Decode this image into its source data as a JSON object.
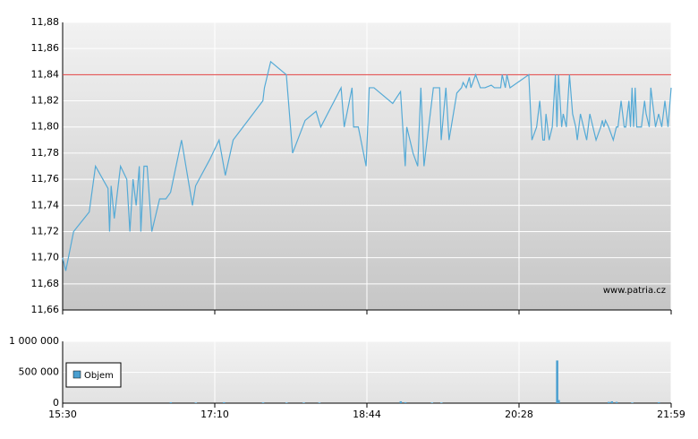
{
  "chart_data": [
    {
      "type": "line",
      "color": "#55aad6",
      "grid": true,
      "xlim": [
        0,
        389
      ],
      "ylim": [
        11.66,
        11.88
      ],
      "yticks": [
        {
          "value": 11.66,
          "label": "11,66"
        },
        {
          "value": 11.68,
          "label": "11,68"
        },
        {
          "value": 11.7,
          "label": "11,70"
        },
        {
          "value": 11.72,
          "label": "11,72"
        },
        {
          "value": 11.74,
          "label": "11,74"
        },
        {
          "value": 11.76,
          "label": "11,76"
        },
        {
          "value": 11.78,
          "label": "11,78"
        },
        {
          "value": 11.8,
          "label": "11,80"
        },
        {
          "value": 11.82,
          "label": "11,82"
        },
        {
          "value": 11.84,
          "label": "11,84"
        },
        {
          "value": 11.86,
          "label": "11,86"
        },
        {
          "value": 11.88,
          "label": "11,88"
        }
      ],
      "ref_line": {
        "value": 11.84,
        "color": "#e04040"
      },
      "annotation": "www.patria.cz",
      "x": [
        0,
        2,
        7,
        17,
        21,
        29,
        30,
        31,
        33,
        37,
        41,
        43,
        45,
        47,
        49,
        50,
        52,
        54,
        57,
        62,
        66,
        69,
        76,
        83,
        85,
        94,
        100,
        104,
        109,
        128,
        129,
        133,
        143,
        147,
        155,
        162,
        165,
        178,
        180,
        185,
        186,
        189,
        194,
        196,
        199,
        211,
        216,
        219,
        220,
        224,
        227,
        229,
        231,
        237,
        241,
        242,
        245,
        247,
        252,
        255,
        256,
        258,
        260,
        261,
        264,
        267,
        270,
        274,
        276,
        280,
        281,
        283,
        284,
        286,
        298,
        300,
        303,
        305,
        307,
        308,
        309,
        311,
        313,
        315,
        316,
        317,
        319,
        320,
        322,
        324,
        326,
        328,
        329,
        331,
        333,
        335,
        336,
        337,
        339,
        341,
        344,
        345,
        346,
        347,
        349,
        352,
        354,
        355,
        357,
        359,
        360,
        362,
        363,
        364,
        365,
        366,
        367,
        370,
        372,
        373,
        375,
        376,
        379,
        381,
        383,
        385,
        387,
        389
      ],
      "values": [
        11.7,
        11.69,
        11.72,
        11.735,
        11.77,
        11.753,
        11.72,
        11.755,
        11.73,
        11.77,
        11.76,
        11.72,
        11.76,
        11.74,
        11.77,
        11.72,
        11.77,
        11.77,
        11.72,
        11.745,
        11.745,
        11.75,
        11.79,
        11.74,
        11.755,
        11.775,
        11.79,
        11.763,
        11.79,
        11.82,
        11.83,
        11.85,
        11.84,
        11.78,
        11.805,
        11.812,
        11.8,
        11.83,
        11.8,
        11.83,
        11.8,
        11.8,
        11.77,
        11.83,
        11.83,
        11.818,
        11.827,
        11.77,
        11.8,
        11.78,
        11.77,
        11.83,
        11.77,
        11.83,
        11.83,
        11.79,
        11.83,
        11.79,
        11.826,
        11.83,
        11.834,
        11.83,
        11.838,
        11.83,
        11.84,
        11.83,
        11.83,
        11.832,
        11.83,
        11.83,
        11.84,
        11.83,
        11.84,
        11.83,
        11.84,
        11.79,
        11.8,
        11.82,
        11.79,
        11.79,
        11.81,
        11.79,
        11.8,
        11.84,
        11.8,
        11.84,
        11.8,
        11.81,
        11.8,
        11.84,
        11.81,
        11.8,
        11.79,
        11.81,
        11.8,
        11.79,
        11.8,
        11.81,
        11.8,
        11.79,
        11.8,
        11.805,
        11.8,
        11.805,
        11.8,
        11.79,
        11.8,
        11.8,
        11.82,
        11.8,
        11.8,
        11.82,
        11.8,
        11.83,
        11.8,
        11.83,
        11.8,
        11.8,
        11.82,
        11.81,
        11.8,
        11.83,
        11.8,
        11.81,
        11.8,
        11.82,
        11.8,
        11.83
      ]
    },
    {
      "type": "bar",
      "color": "#4a9fd0",
      "grid": true,
      "legend": "upper left",
      "xlim": [
        0,
        389
      ],
      "ylim": [
        0,
        1000000
      ],
      "xticks": [
        {
          "value": 0,
          "label": "15:30"
        },
        {
          "value": 97.25,
          "label": "17:10"
        },
        {
          "value": 194.5,
          "label": "18:44"
        },
        {
          "value": 291.75,
          "label": "20:28"
        },
        {
          "value": 389,
          "label": "21:59"
        }
      ],
      "yticks": [
        0,
        {
          "value": 500000,
          "label": "500 000"
        },
        {
          "value": 1000000,
          "label": "1 000 000"
        }
      ],
      "series": [
        {
          "name": "Objem",
          "color": "#4a9fd0",
          "x": [
            69,
            85,
            103,
            128,
            143,
            154,
            164,
            216,
            219,
            236,
            242,
            316,
            317,
            349,
            351,
            354,
            364,
            381
          ],
          "values": [
            15000,
            10000,
            15000,
            12000,
            10000,
            10000,
            10000,
            30000,
            15000,
            10000,
            10000,
            690000,
            50000,
            20000,
            30000,
            20000,
            10000,
            15000
          ]
        }
      ]
    }
  ]
}
